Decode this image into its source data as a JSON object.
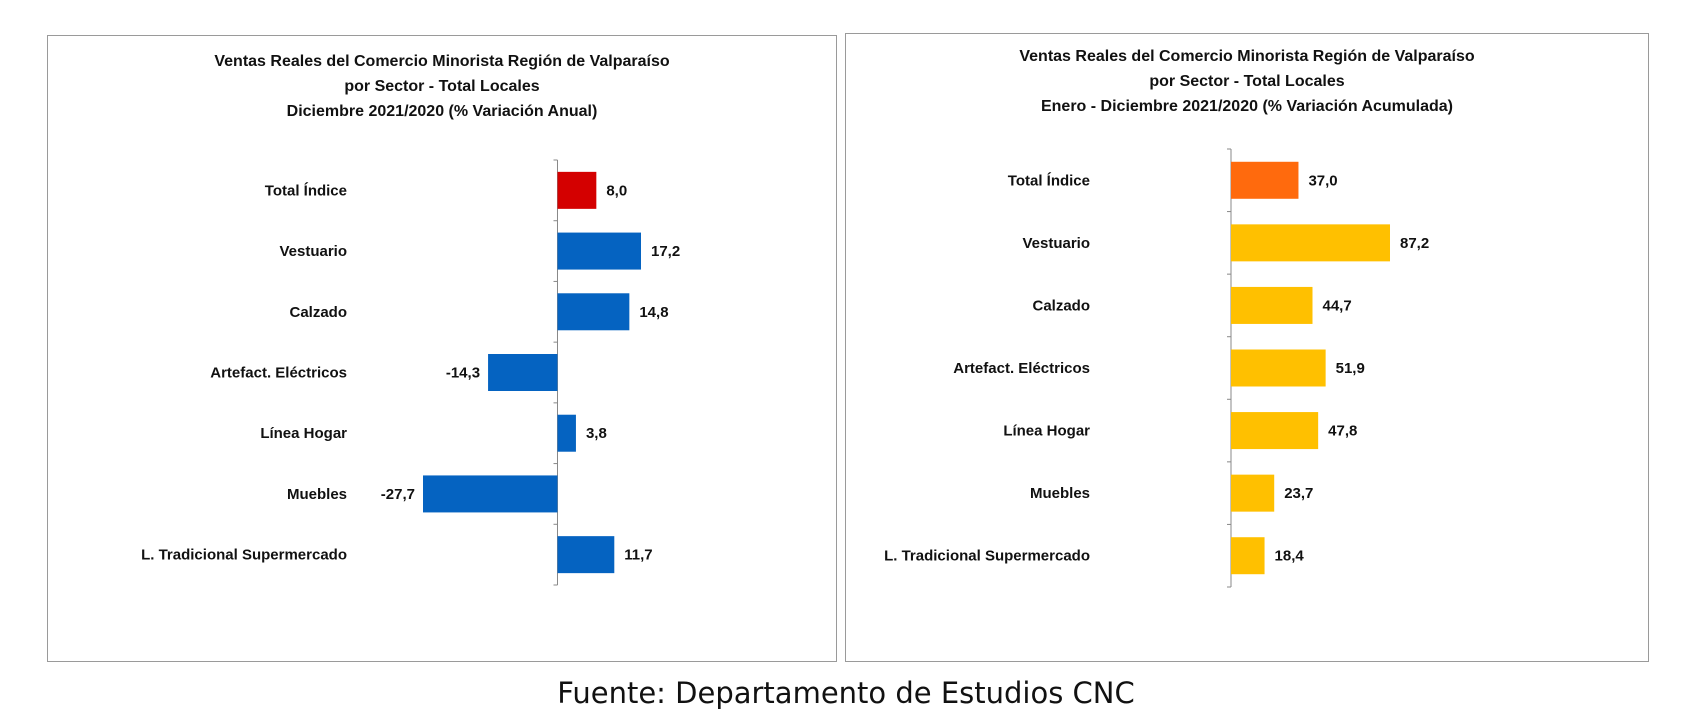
{
  "chart_data": [
    {
      "type": "bar",
      "orientation": "horizontal",
      "title": [
        "Ventas Reales del Comercio Minorista Región de Valparaíso",
        "por Sector - Total Locales",
        "Diciembre 2021/2020 (% Variación Anual)"
      ],
      "categories": [
        "Total Índice",
        "Vestuario",
        "Calzado",
        "Artefact. Eléctricos",
        "Línea Hogar",
        "Muebles",
        "L. Tradicional Supermercado"
      ],
      "values": [
        8.0,
        17.2,
        14.8,
        -14.3,
        3.8,
        -27.7,
        11.7
      ],
      "value_labels": [
        "8,0",
        "17,2",
        "14,8",
        "-14,3",
        "3,8",
        "-27,7",
        "11,7"
      ],
      "colors": [
        "#d40000",
        "#0563c1",
        "#0563c1",
        "#0563c1",
        "#0563c1",
        "#0563c1",
        "#0563c1"
      ],
      "xlim": [
        -27.7,
        17.2
      ],
      "gridlines": false,
      "legend": "none"
    },
    {
      "type": "bar",
      "orientation": "horizontal",
      "title": [
        "Ventas Reales del Comercio Minorista Región de Valparaíso",
        "por Sector  - Total Locales",
        "Enero - Diciembre 2021/2020 (% Variación Acumulada)"
      ],
      "categories": [
        "Total Índice",
        "Vestuario",
        "Calzado",
        "Artefact. Eléctricos",
        "Línea Hogar",
        "Muebles",
        "L. Tradicional Supermercado"
      ],
      "values": [
        37.0,
        87.2,
        44.7,
        51.9,
        47.8,
        23.7,
        18.4
      ],
      "value_labels": [
        "37,0",
        "87,2",
        "44,7",
        "51,9",
        "47,8",
        "23,7",
        "18,4"
      ],
      "colors": [
        "#ff6a0d",
        "#ffc000",
        "#ffc000",
        "#ffc000",
        "#ffc000",
        "#ffc000",
        "#ffc000"
      ],
      "xlim": [
        0,
        87.2
      ],
      "gridlines": false,
      "legend": "none"
    }
  ],
  "source": "Fuente: Departamento de Estudios CNC"
}
